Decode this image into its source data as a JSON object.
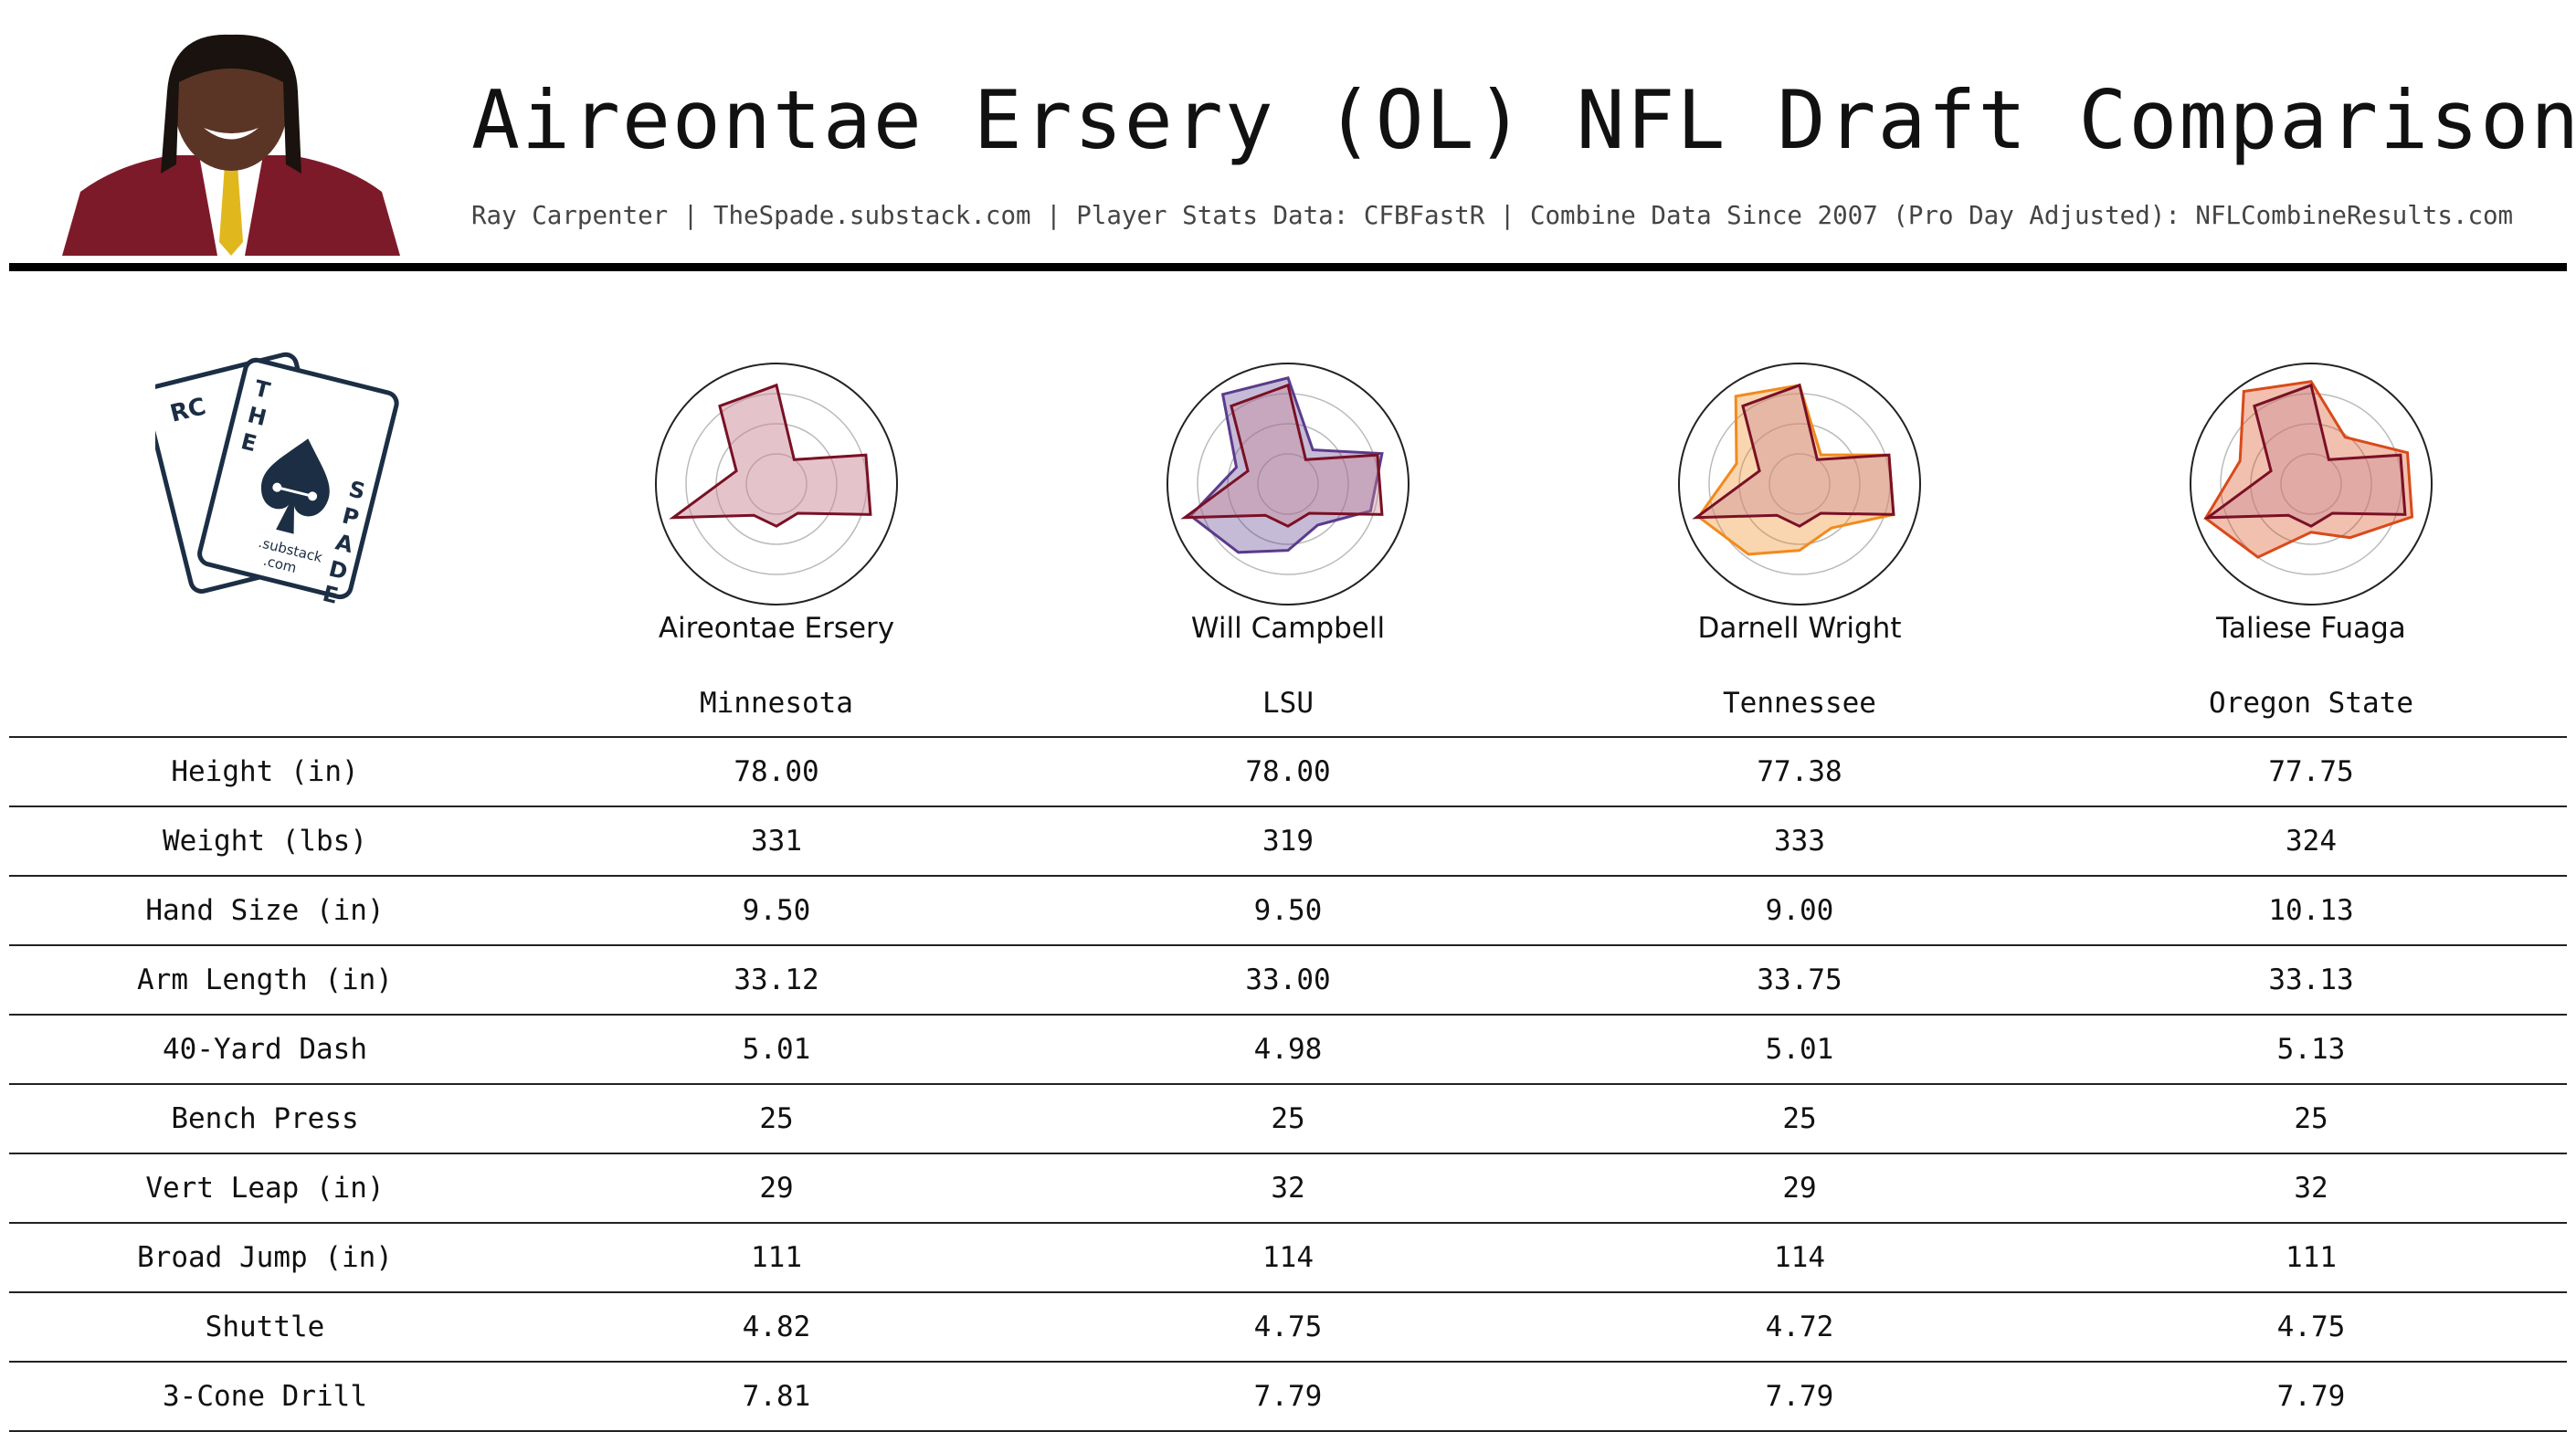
{
  "header": {
    "title": "Aireontae Ersery (OL) NFL Draft Comparison",
    "subtitle": "Ray Carpenter | TheSpade.substack.com | Player Stats Data: CFBFastR | Combine Data Since 2007 (Pro Day Adjusted): NFLCombineResults.com"
  },
  "logo": {
    "letters_back": "RC",
    "letters_front": [
      "T",
      "H",
      "E",
      "S",
      "P",
      "A",
      "D",
      "E"
    ],
    "tagline_1": ".substack",
    "tagline_2": ".com"
  },
  "colors": {
    "primary": "#7a1025",
    "primary_fill": "#c98a96",
    "campbell": "#5b3b8c",
    "wright": "#f28a1e",
    "fuaga": "#d94a1a",
    "grid": "#bbbbbb",
    "outer": "#222222"
  },
  "chart_data": {
    "type": "table",
    "radar_axes": 10,
    "players": [
      {
        "name": "Aireontae Ersery",
        "school": "Minnesota",
        "radar": [
          0.82,
          0.25,
          0.78,
          0.82,
          0.3,
          0.35,
          0.32,
          0.9,
          0.35,
          0.8
        ]
      },
      {
        "name": "Will Campbell",
        "school": "LSU",
        "radar": [
          0.88,
          0.35,
          0.82,
          0.72,
          0.42,
          0.55,
          0.7,
          0.85,
          0.45,
          0.92
        ]
      },
      {
        "name": "Darnell Wright",
        "school": "Tennessee",
        "radar": [
          0.82,
          0.3,
          0.78,
          0.82,
          0.45,
          0.55,
          0.72,
          0.88,
          0.55,
          0.9
        ]
      },
      {
        "name": "Taliese Fuaga",
        "school": "Oregon State",
        "radar": [
          0.85,
          0.48,
          0.84,
          0.88,
          0.55,
          0.4,
          0.75,
          0.92,
          0.62,
          0.95
        ]
      }
    ],
    "comparison_series": [
      0.82,
      0.25,
      0.78,
      0.82,
      0.3,
      0.35,
      0.32,
      0.9,
      0.35,
      0.8
    ],
    "row_labels": [
      "Height (in)",
      "Weight (lbs)",
      "Hand Size (in)",
      "Arm Length (in)",
      "40-Yard Dash",
      "Bench Press",
      "Vert Leap (in)",
      "Broad Jump (in)",
      "Shuttle",
      "3-Cone Drill"
    ],
    "rows": [
      [
        "78.00",
        "78.00",
        "77.38",
        "77.75"
      ],
      [
        "331",
        "319",
        "333",
        "324"
      ],
      [
        "9.50",
        "9.50",
        "9.00",
        "10.13"
      ],
      [
        "33.12",
        "33.00",
        "33.75",
        "33.13"
      ],
      [
        "5.01",
        "4.98",
        "5.01",
        "5.13"
      ],
      [
        "25",
        "25",
        "25",
        "25"
      ],
      [
        "29",
        "32",
        "29",
        "32"
      ],
      [
        "111",
        "114",
        "114",
        "111"
      ],
      [
        "4.82",
        "4.75",
        "4.72",
        "4.75"
      ],
      [
        "7.81",
        "7.79",
        "7.79",
        "7.79"
      ]
    ]
  }
}
